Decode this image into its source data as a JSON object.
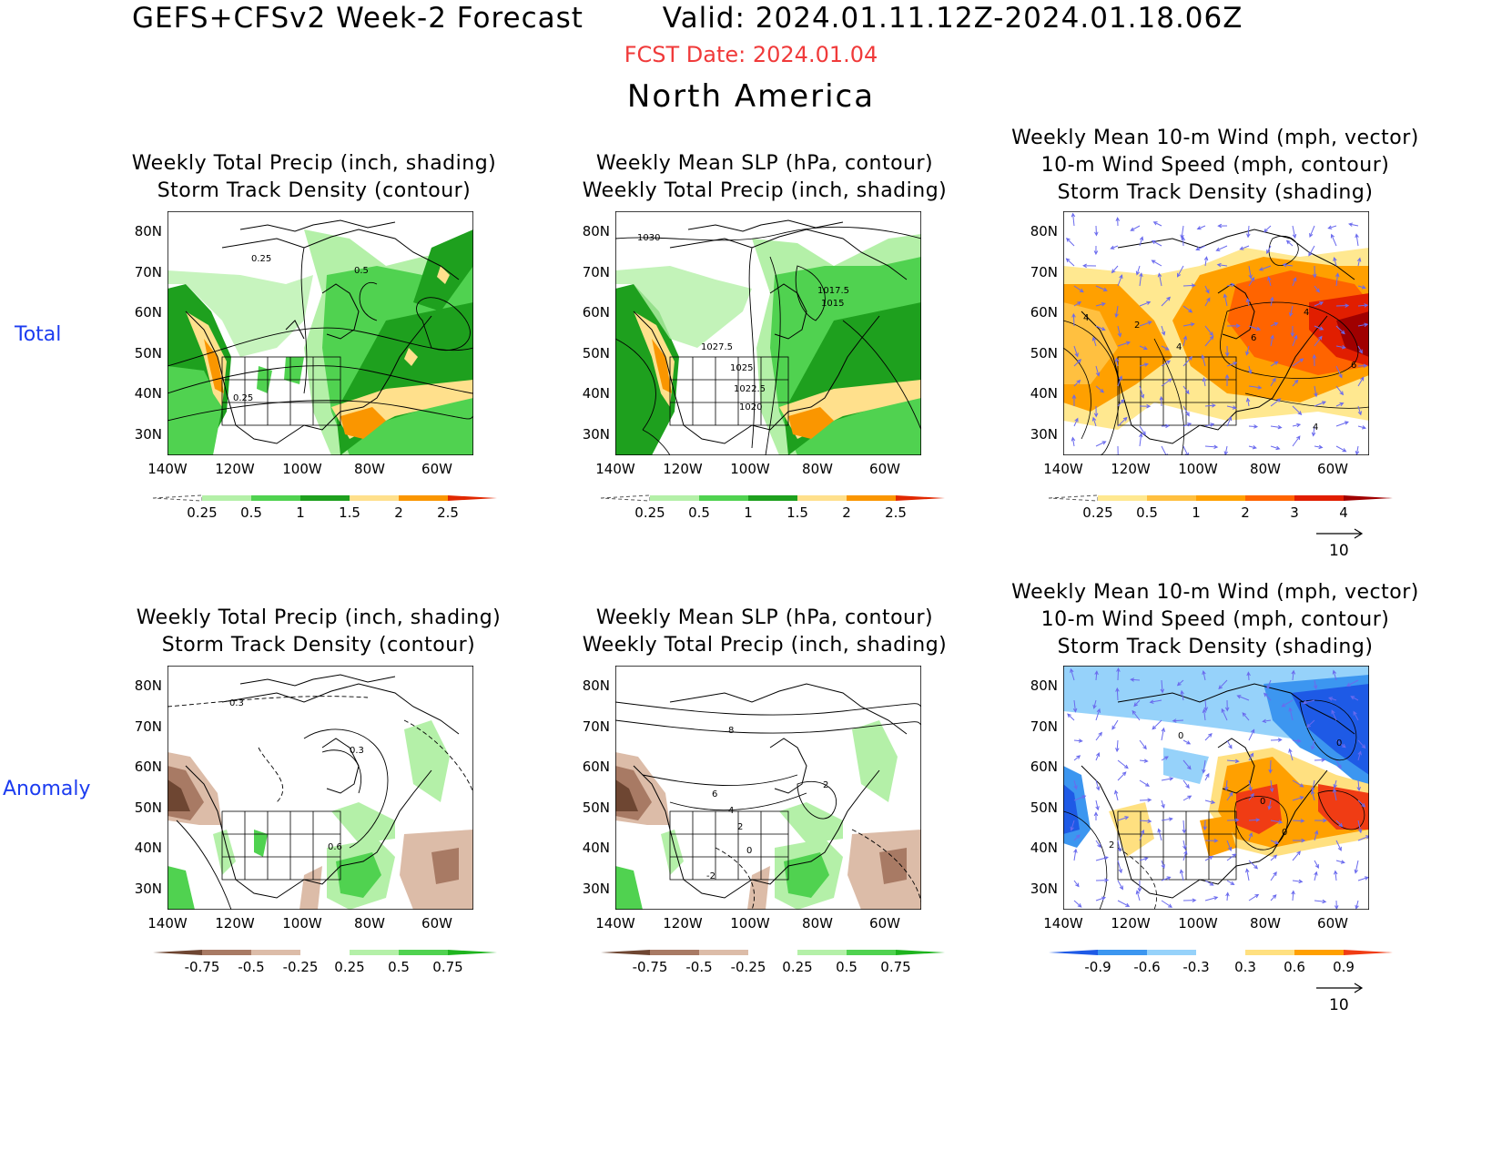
{
  "header": {
    "title": "GEFS+CFSv2 Week-2 Forecast        Valid: 2024.01.11.12Z-2024.01.18.06Z",
    "fcst_date": "FCST Date: 2024.01.04",
    "region": "North America"
  },
  "rows": {
    "total": "Total",
    "anomaly": "Anomaly"
  },
  "titles": {
    "precip": [
      "Weekly Total Precip (inch, shading)",
      "Storm Track Density (contour)"
    ],
    "slp": [
      "Weekly Mean SLP (hPa, contour)",
      "Weekly Total Precip (inch, shading)"
    ],
    "wind": [
      "Weekly Mean 10-m Wind (mph, vector)",
      "10-m Wind Speed (mph, contour)",
      "Storm Track Density (shading)"
    ]
  },
  "axes": {
    "lat_labels": [
      "80N",
      "70N",
      "60N",
      "50N",
      "40N",
      "30N"
    ],
    "lon_labels": [
      "140W",
      "120W",
      "100W",
      "80W",
      "60W"
    ]
  },
  "colorbars": {
    "precip_total": [
      "0.25",
      "0.5",
      "1",
      "1.5",
      "2",
      "2.5"
    ],
    "wind_total": [
      "0.25",
      "0.5",
      "1",
      "2",
      "3",
      "4"
    ],
    "precip_anom": [
      "-0.75",
      "-0.5",
      "-0.25",
      "0.25",
      "0.5",
      "0.75"
    ],
    "wind_anom": [
      "-0.9",
      "-0.6",
      "-0.3",
      "0.3",
      "0.6",
      "0.9"
    ]
  },
  "colors": {
    "precip_total": [
      "#ffffff",
      "#b4f0a8",
      "#50d250",
      "#1ea01e",
      "#ffe08c",
      "#fa9600",
      "#e12800"
    ],
    "wind_total": [
      "#ffffff",
      "#ffe890",
      "#ffc040",
      "#ffa000",
      "#ff6400",
      "#e11e00",
      "#a00000"
    ],
    "precip_anom": [
      "#6e4632",
      "#a87a64",
      "#dcbca8",
      "#ffffff",
      "#b4f0a8",
      "#50d250",
      "#1eb41e"
    ],
    "wind_anom": [
      "#1e5ae6",
      "#3c96f0",
      "#96d2fa",
      "#ffffff",
      "#ffe080",
      "#ffa000",
      "#f03c14"
    ]
  },
  "contour_labels": {
    "precip_total": [
      "0.25",
      "0.5",
      "0.25"
    ],
    "slp_total": [
      "1030",
      "1017.5",
      "1015",
      "1027.5",
      "1025",
      "1022.5",
      "1020"
    ],
    "wind_total": [
      "4",
      "2",
      "4",
      "4",
      "6",
      "6",
      "4"
    ],
    "precip_anom": [
      "0.3",
      "0.3",
      "0.6"
    ],
    "slp_anom": [
      "8",
      "6",
      "4",
      "2",
      "2",
      "0",
      "-2"
    ],
    "wind_anom": [
      "0",
      "0",
      "0",
      "2",
      "0"
    ]
  },
  "vector_key": "10"
}
